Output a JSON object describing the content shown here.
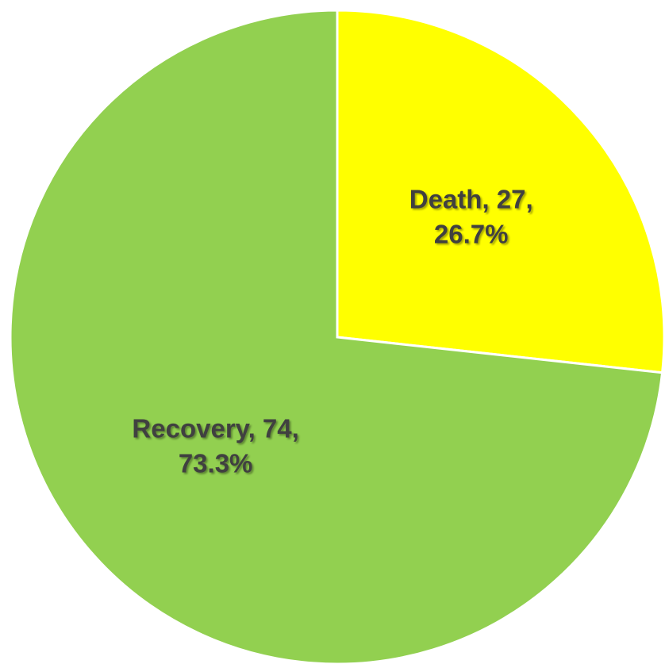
{
  "chart_data": {
    "type": "pie",
    "categories": [
      "Death",
      "Recovery"
    ],
    "values": [
      27,
      74
    ],
    "percentages": [
      26.7,
      73.3
    ],
    "percent_labels": [
      "26.7%",
      "73.3%"
    ],
    "label_separator": ",",
    "colors": [
      "#ffff00",
      "#92d050"
    ],
    "start_angle": 0,
    "direction": "clockwise"
  }
}
